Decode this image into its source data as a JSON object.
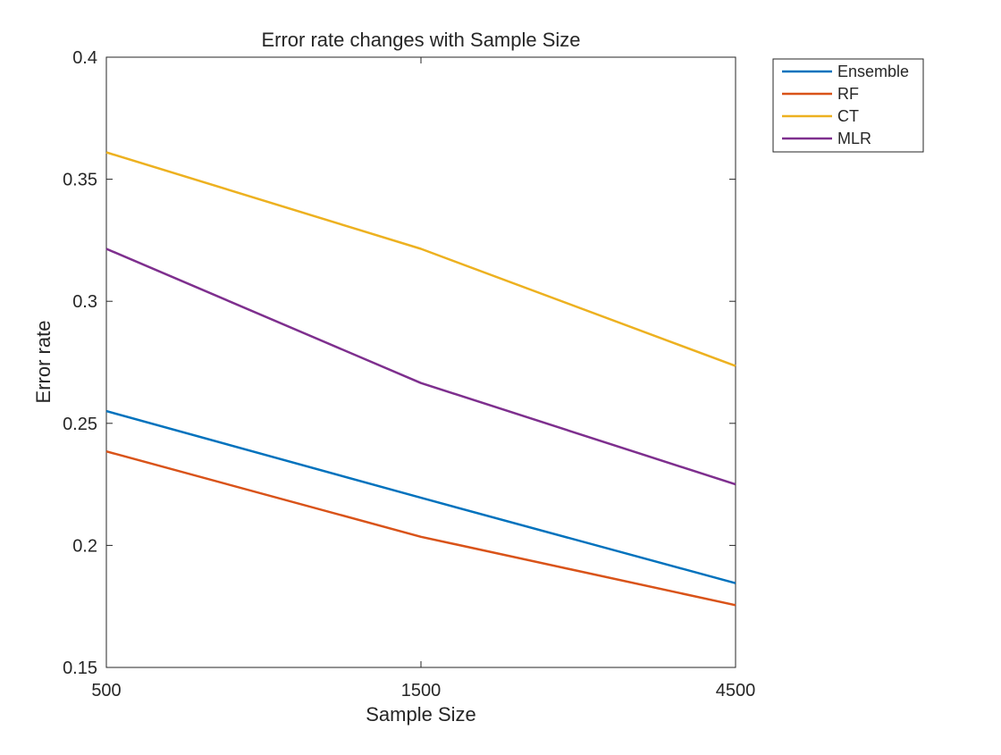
{
  "chart_data": {
    "type": "line",
    "title": "Error rate changes with Sample Size",
    "xlabel": "Sample Size",
    "ylabel": "Error rate",
    "x": [
      "500",
      "1500",
      "4500"
    ],
    "ylim": [
      0.15,
      0.4
    ],
    "yticks": [
      "0.15",
      "0.2",
      "0.25",
      "0.3",
      "0.35",
      "0.4"
    ],
    "grid": false,
    "legend_position": "outside-top-right",
    "series": [
      {
        "name": "Ensemble",
        "color": "#0072BD",
        "values": [
          0.255,
          0.2195,
          0.1845
        ]
      },
      {
        "name": "RF",
        "color": "#D95319",
        "values": [
          0.2385,
          0.2035,
          0.1755
        ]
      },
      {
        "name": "CT",
        "color": "#EDB120",
        "values": [
          0.361,
          0.3215,
          0.2735
        ]
      },
      {
        "name": "MLR",
        "color": "#7E2F8E",
        "values": [
          0.3215,
          0.2665,
          0.225
        ]
      }
    ]
  }
}
